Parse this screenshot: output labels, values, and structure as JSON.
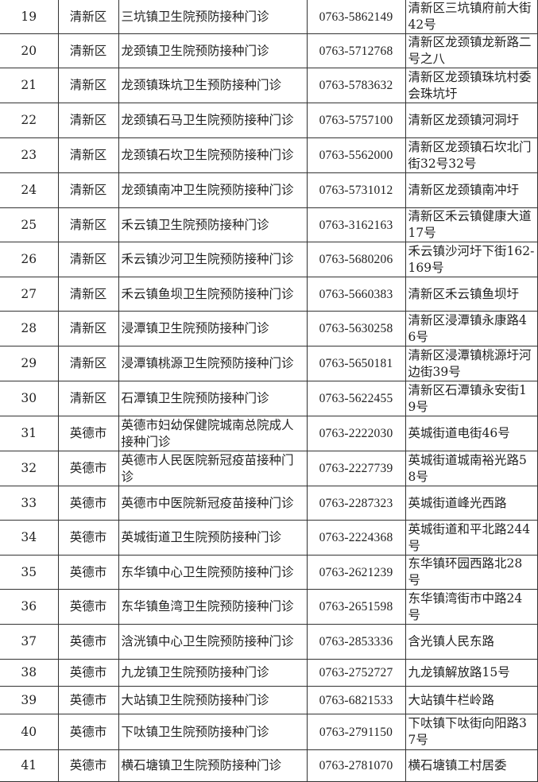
{
  "table": {
    "rows": [
      {
        "no": "19",
        "district": "清新区",
        "name": "三坑镇卫生院预防接种门诊",
        "phone": "0763-5862149",
        "address": "清新区三坑镇府前大街42号"
      },
      {
        "no": "20",
        "district": "清新区",
        "name": "龙颈镇卫生院预防接种门诊",
        "phone": "0763-5712768",
        "address": "清新区龙颈镇龙新路二号之八"
      },
      {
        "no": "21",
        "district": "清新区",
        "name": "龙颈镇珠坑卫生预防接种门诊",
        "phone": "0763-5783632",
        "address": "清新区龙颈镇珠坑村委会珠坑圩"
      },
      {
        "no": "22",
        "district": "清新区",
        "name": "龙颈镇石马卫生院预防接种门诊",
        "phone": "0763-5757100",
        "address": "清新区龙颈镇河洞圩"
      },
      {
        "no": "23",
        "district": "清新区",
        "name": "龙颈镇石坎卫生院预防接种门诊",
        "phone": "0763-5562000",
        "address": "清新区龙颈镇石坎北门街32号32号"
      },
      {
        "no": "24",
        "district": "清新区",
        "name": "龙颈镇南冲卫生院预防接种门诊",
        "phone": "0763-5731012",
        "address": "清新区龙颈镇南冲圩"
      },
      {
        "no": "25",
        "district": "清新区",
        "name": "禾云镇卫生院预防接种门诊",
        "phone": "0763-3162163",
        "address": "清新区禾云镇健康大道17号"
      },
      {
        "no": "26",
        "district": "清新区",
        "name": "禾云镇沙河卫生院预防接种门诊",
        "phone": "0763-5680206",
        "address": "禾云镇沙河圩下街162-169号"
      },
      {
        "no": "27",
        "district": "清新区",
        "name": "禾云镇鱼坝卫生院预防接种门诊",
        "phone": "0763-5660383",
        "address": "清新区禾云镇鱼坝圩"
      },
      {
        "no": "28",
        "district": "清新区",
        "name": "浸潭镇卫生院预防接种门诊",
        "phone": "0763-5630258",
        "address": "清新区浸潭镇永康路46号"
      },
      {
        "no": "29",
        "district": "清新区",
        "name": "浸潭镇桃源卫生院预防接种门诊",
        "phone": "0763-5650181",
        "address": "清新区浸潭镇桃源圩河边街39号"
      },
      {
        "no": "30",
        "district": "清新区",
        "name": "石潭镇卫生院预防接种门诊",
        "phone": "0763-5622455",
        "address": "清新区石潭镇永安街19号"
      },
      {
        "no": "31",
        "district": "英德市",
        "name": "英德市妇幼保健院城南总院成人接种门诊",
        "phone": "0763-2222030",
        "address": "英城街道电街46号"
      },
      {
        "no": "32",
        "district": "英德市",
        "name": "英德市人民医院新冠疫苗接种门诊",
        "phone": "0763-2227739",
        "address": "英城街道城南裕光路58号"
      },
      {
        "no": "33",
        "district": "英德市",
        "name": "英德市中医院新冠疫苗接种门诊",
        "phone": "0763-2287323",
        "address": "英城街道峰光西路"
      },
      {
        "no": "34",
        "district": "英德市",
        "name": "英城街道卫生院预防接种门诊",
        "phone": "0763-2224368",
        "address": "英城街道和平北路244号"
      },
      {
        "no": "35",
        "district": "英德市",
        "name": "东华镇中心卫生院预防接种门诊",
        "phone": "0763-2621239",
        "address": "东华镇环园西路北28号"
      },
      {
        "no": "36",
        "district": "英德市",
        "name": "东华镇鱼湾卫生院预防接种门诊",
        "phone": "0763-2651598",
        "address": "东华镇湾街市中路24号"
      },
      {
        "no": "37",
        "district": "英德市",
        "name": "浛洸镇中心卫生院预防接种门诊",
        "phone": "0763-2853336",
        "address": "含光镇人民东路"
      },
      {
        "no": "38",
        "district": "英德市",
        "name": "九龙镇卫生院预防接种门诊",
        "phone": "0763-2752727",
        "address": "九龙镇解放路15号"
      },
      {
        "no": "39",
        "district": "英德市",
        "name": "大站镇卫生院预防接种门诊",
        "phone": "0763-6821533",
        "address": "大站镇牛栏岭路"
      },
      {
        "no": "40",
        "district": "英德市",
        "name": "下呔镇卫生院预防接种门诊",
        "phone": "0763-2791150",
        "address": "下呔镇下呔街向阳路37号"
      },
      {
        "no": "41",
        "district": "英德市",
        "name": "横石塘镇卫生院预防接种门诊",
        "phone": "0763-2781070",
        "address": "横石塘镇工村居委"
      }
    ]
  }
}
